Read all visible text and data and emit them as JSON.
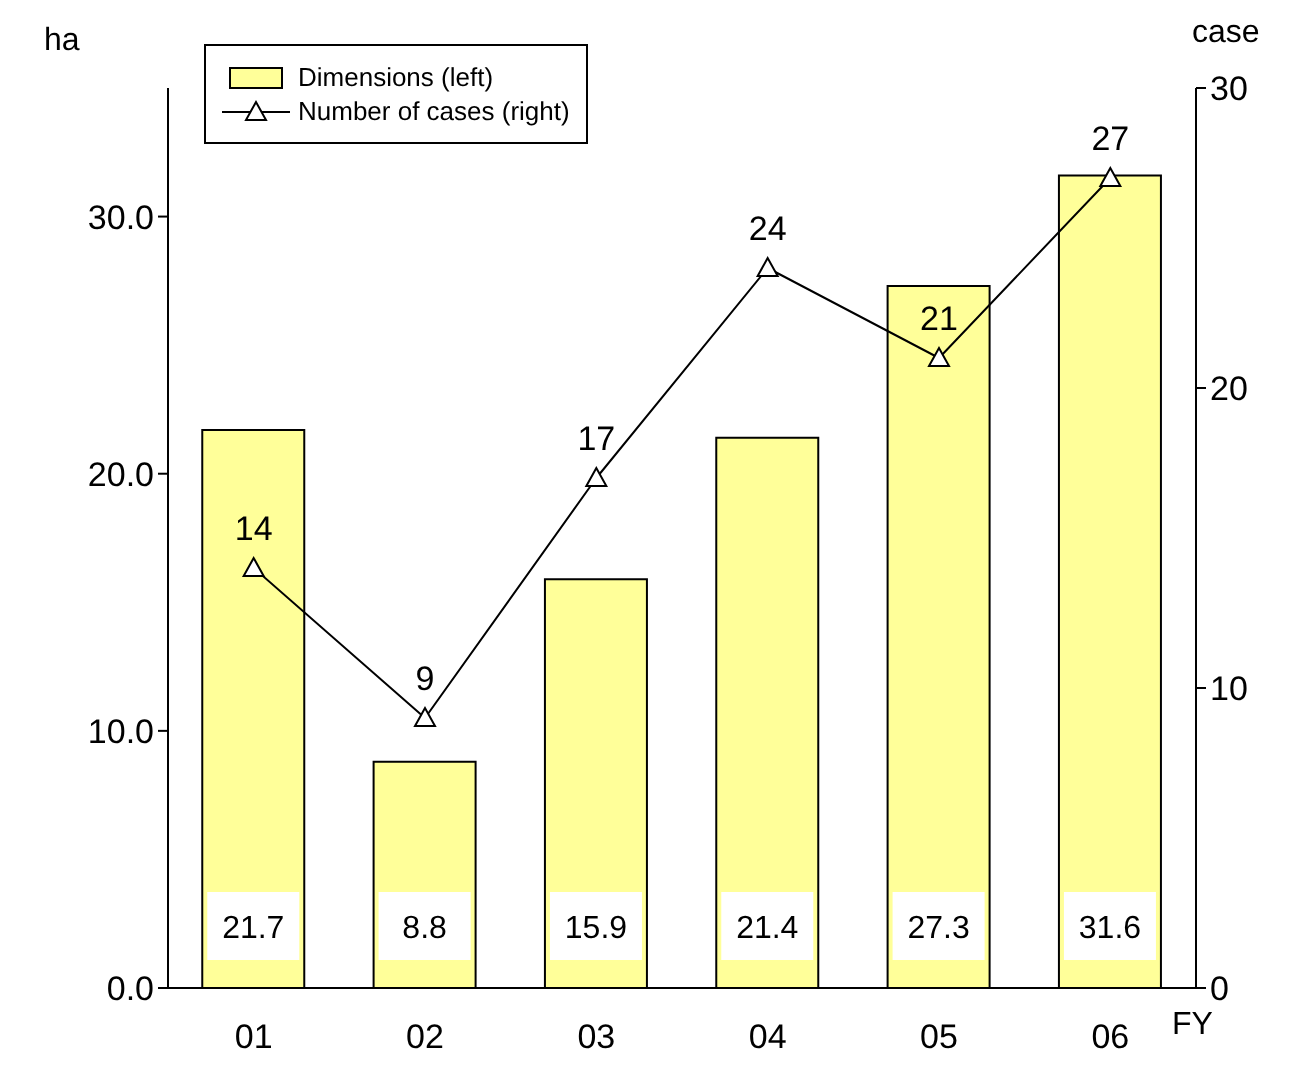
{
  "chart_data": {
    "type": "bar",
    "categories": [
      "01",
      "02",
      "03",
      "04",
      "05",
      "06"
    ],
    "series": [
      {
        "name": "Dimensions (left)",
        "color": "#ffff99",
        "values": [
          21.7,
          8.8,
          15.9,
          21.4,
          27.3,
          31.6
        ]
      },
      {
        "name": "Number of cases (right)",
        "type": "line",
        "axis": "y2",
        "color": "#000000",
        "marker": "triangle",
        "line_style": "solid",
        "values": [
          14,
          9,
          17,
          24,
          21,
          27
        ]
      }
    ],
    "xlabel": "FY",
    "ylabel": "ha",
    "y2label": "case",
    "ylim": [
      0,
      35
    ],
    "yticks": [
      {
        "value": 0,
        "label": "0.0"
      },
      {
        "value": 10,
        "label": "10.0"
      },
      {
        "value": 20,
        "label": "20.0"
      },
      {
        "value": 30,
        "label": "30.0"
      }
    ],
    "y2lim": [
      0,
      30
    ],
    "y2ticks": [
      0,
      10,
      20,
      30
    ],
    "data_labels": true,
    "legend": "top left",
    "grid": false
  }
}
